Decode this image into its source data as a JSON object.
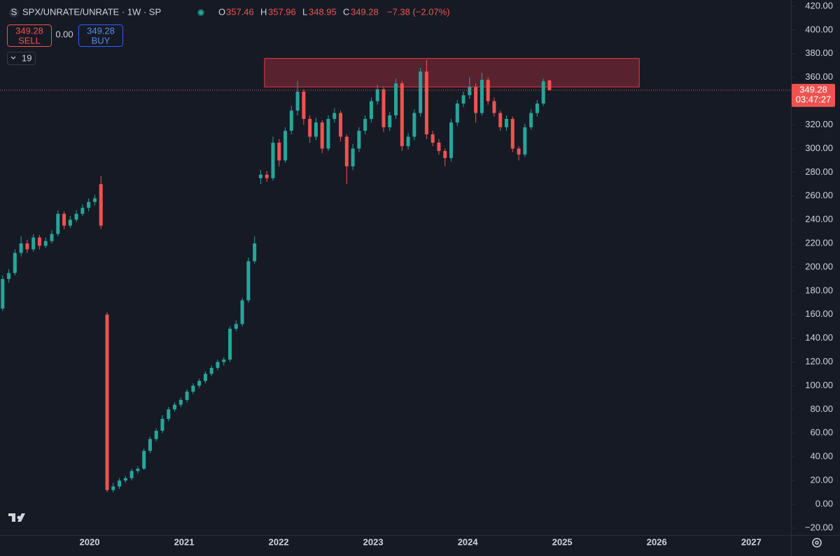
{
  "header": {
    "symbol": "SPX/UNRATE/UNRATE · 1W · SP",
    "labels": [
      "O",
      "H",
      "L",
      "C"
    ],
    "change": "−7.38 (−2.07%)",
    "sell": "SELL",
    "buy": "BUY",
    "spread": "0.00",
    "indicators": "19"
  },
  "chart_data": {
    "type": "candlestick",
    "x": [
      2019.08,
      2019.145,
      2019.21,
      2019.275,
      2019.34,
      2019.405,
      2019.47,
      2019.535,
      2019.6,
      2019.665,
      2019.73,
      2019.795,
      2019.86,
      2019.925,
      2019.99,
      2020.055,
      2020.12,
      2020.185,
      2020.25,
      2020.315,
      2020.38,
      2020.445,
      2020.51,
      2020.575,
      2020.64,
      2020.705,
      2020.77,
      2020.835,
      2020.9,
      2020.965,
      2021.03,
      2021.095,
      2021.16,
      2021.225,
      2021.29,
      2021.355,
      2021.42,
      2021.485,
      2021.55,
      2021.615,
      2021.68,
      2021.745,
      2021.81,
      2021.875,
      2021.94,
      2022.005,
      2022.07,
      2022.135,
      2022.2,
      2022.265,
      2022.33,
      2022.395,
      2022.46,
      2022.525,
      2022.59,
      2022.655,
      2022.72,
      2022.785,
      2022.85,
      2022.915,
      2022.98,
      2023.045,
      2023.11,
      2023.175,
      2023.24,
      2023.305,
      2023.37,
      2023.435,
      2023.5,
      2023.565,
      2023.63,
      2023.695,
      2023.76,
      2023.825,
      2023.89,
      2023.955,
      2024.02,
      2024.085,
      2024.15,
      2024.215,
      2024.28,
      2024.345,
      2024.41,
      2024.475,
      2024.54,
      2024.605,
      2024.67,
      2024.735,
      2024.8,
      2024.865
    ],
    "open": [
      165,
      190,
      195,
      212,
      220,
      215,
      225,
      218,
      222,
      228,
      245,
      235,
      240,
      245,
      250,
      255,
      270,
      160,
      12,
      15,
      20,
      22,
      28,
      30,
      45,
      55,
      62,
      72,
      80,
      84,
      88,
      95,
      100,
      104,
      110,
      115,
      120,
      122,
      148,
      152,
      172,
      205,
      275,
      278,
      275,
      305,
      290,
      315,
      332,
      348,
      325,
      310,
      322,
      300,
      325,
      330,
      310,
      285,
      300,
      315,
      325,
      340,
      350,
      318,
      328,
      355,
      302,
      310,
      330,
      365,
      312,
      305,
      298,
      292,
      322,
      338,
      345,
      352,
      330,
      358,
      340,
      330,
      318,
      325,
      300,
      295,
      318,
      330,
      338,
      357.46
    ],
    "high": [
      193,
      198,
      215,
      226,
      223,
      228,
      227,
      225,
      231,
      248,
      247,
      243,
      248,
      253,
      258,
      261,
      277,
      162,
      18,
      22,
      24,
      30,
      32,
      47,
      57,
      64,
      75,
      82,
      86,
      90,
      97,
      102,
      106,
      112,
      117,
      122,
      124,
      150,
      155,
      174,
      208,
      226,
      282,
      281,
      310,
      308,
      318,
      336,
      357,
      350,
      328,
      326,
      324,
      328,
      334,
      332,
      312,
      304,
      318,
      328,
      343,
      354,
      352,
      331,
      359,
      357,
      313,
      333,
      368,
      375,
      315,
      308,
      300,
      325,
      341,
      348,
      360,
      355,
      364,
      360,
      343,
      332,
      328,
      327,
      302,
      321,
      333,
      341,
      359,
      357.96
    ],
    "low": [
      163,
      187,
      193,
      209,
      212,
      213,
      215,
      216,
      220,
      226,
      232,
      233,
      238,
      243,
      247,
      252,
      232,
      10,
      10,
      13,
      18,
      20,
      26,
      29,
      43,
      53,
      60,
      70,
      78,
      82,
      86,
      93,
      98,
      102,
      108,
      113,
      117,
      120,
      146,
      150,
      170,
      203,
      270,
      272,
      273,
      285,
      288,
      312,
      328,
      320,
      305,
      307,
      296,
      298,
      322,
      306,
      270,
      282,
      297,
      312,
      322,
      337,
      314,
      315,
      325,
      298,
      299,
      307,
      327,
      308,
      302,
      295,
      285,
      289,
      319,
      335,
      342,
      322,
      328,
      337,
      327,
      315,
      315,
      297,
      290,
      293,
      316,
      327,
      336,
      348.95
    ],
    "close": [
      190,
      195,
      212,
      220,
      215,
      225,
      218,
      222,
      228,
      245,
      235,
      240,
      245,
      250,
      255,
      258,
      235,
      12,
      15,
      20,
      22,
      28,
      30,
      45,
      55,
      62,
      72,
      80,
      84,
      88,
      95,
      100,
      104,
      110,
      115,
      120,
      122,
      148,
      152,
      172,
      205,
      220,
      278,
      275,
      305,
      290,
      315,
      332,
      348,
      325,
      310,
      322,
      300,
      325,
      330,
      310,
      285,
      300,
      315,
      325,
      340,
      350,
      318,
      328,
      355,
      302,
      310,
      330,
      365,
      312,
      305,
      298,
      292,
      322,
      338,
      345,
      352,
      330,
      358,
      340,
      330,
      318,
      325,
      300,
      295,
      318,
      330,
      338,
      356.66,
      349.28
    ],
    "up_color": "#26a69a",
    "down_color": "#ef5350",
    "xlim": [
      2019.052,
      2027.42
    ],
    "xticks": [
      2020,
      2021,
      2022,
      2023,
      2024,
      2025,
      2026,
      2027
    ],
    "ylim": [
      -25.96,
      425.31
    ],
    "yticks": [
      {
        "value": -20,
        "label": "−20.00"
      },
      {
        "value": 0,
        "label": "0.00"
      },
      {
        "value": 20,
        "label": "20.00"
      },
      {
        "value": 40,
        "label": "40.00"
      },
      {
        "value": 60,
        "label": "60.00"
      },
      {
        "value": 80,
        "label": "80.00"
      },
      {
        "value": 100,
        "label": "100.00"
      },
      {
        "value": 120,
        "label": "120.00"
      },
      {
        "value": 140,
        "label": "140.00"
      },
      {
        "value": 160,
        "label": "160.00"
      },
      {
        "value": 180,
        "label": "180.00"
      },
      {
        "value": 200,
        "label": "200.00"
      },
      {
        "value": 220,
        "label": "220.00"
      },
      {
        "value": 240,
        "label": "240.00"
      },
      {
        "value": 260,
        "label": "260.00"
      },
      {
        "value": 280,
        "label": "280.00"
      },
      {
        "value": 300,
        "label": "300.00"
      },
      {
        "value": 320,
        "label": "320.00"
      },
      {
        "value": 340,
        "label": "340.00"
      },
      {
        "value": 360,
        "label": "360.00"
      },
      {
        "value": 380,
        "label": "380.00"
      },
      {
        "value": 400,
        "label": "400.00"
      },
      {
        "value": 420,
        "label": "420.00"
      }
    ],
    "grid": false,
    "zone": {
      "x": [
        2021.85,
        2025.815
      ],
      "y": [
        352,
        376
      ],
      "color": "#f23645"
    },
    "countdown": "03:47:27"
  }
}
